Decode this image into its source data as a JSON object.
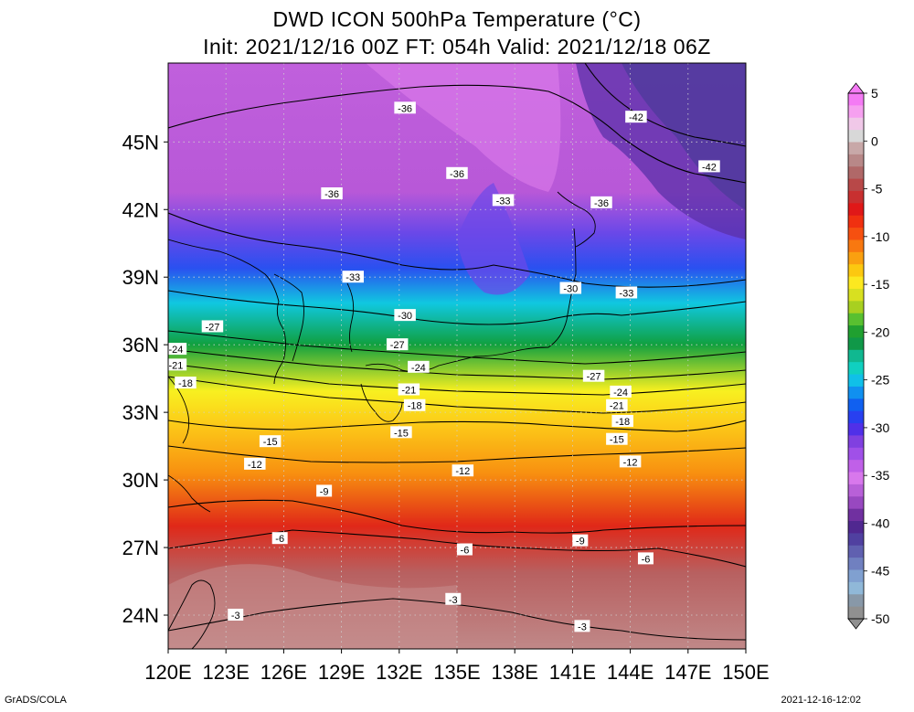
{
  "title_line1": "DWD ICON 500hPa Temperature (°C)",
  "title_line2": "Init: 2021/12/16 00Z  FT: 054h  Valid: 2021/12/18 06Z",
  "footer_left": "GrADS/COLA",
  "footer_right": "2021-12-16-12:02",
  "axes": {
    "lon_ticks": [
      "120E",
      "123E",
      "126E",
      "129E",
      "132E",
      "135E",
      "138E",
      "141E",
      "144E",
      "147E",
      "150E"
    ],
    "lat_ticks": [
      "24N",
      "27N",
      "30N",
      "33N",
      "36N",
      "39N",
      "42N",
      "45N"
    ],
    "lon_range": [
      120,
      150
    ],
    "lat_range": [
      22.5,
      48.5
    ]
  },
  "colorbar": {
    "labels": [
      "5",
      "0",
      "-5",
      "-10",
      "-15",
      "-20",
      "-25",
      "-30",
      "-35",
      "-40",
      "-45",
      "-50"
    ],
    "colors": [
      "#f47af4",
      "#f6a0f0",
      "#f0c8e8",
      "#d8d8d8",
      "#c8a8a8",
      "#b88888",
      "#b06868",
      "#b84848",
      "#c83030",
      "#e01818",
      "#f03010",
      "#f65010",
      "#f87810",
      "#faa010",
      "#fcc810",
      "#fce820",
      "#d8e020",
      "#a8d020",
      "#58c030",
      "#20a030",
      "#109848",
      "#10b890",
      "#10d0c0",
      "#10c0e8",
      "#1090f0",
      "#1060f0",
      "#2840f0",
      "#5030e8",
      "#8040e0",
      "#a050e8",
      "#c060e8",
      "#d878ec",
      "#b860d8",
      "#9848c0",
      "#7030a0",
      "#502890",
      "#5040a0",
      "#6060b0",
      "#7080c0",
      "#80a0d0",
      "#90b8d8",
      "#8898a8",
      "#909090"
    ]
  },
  "contour_labels": [
    {
      "text": "-36",
      "lon": 132.3,
      "lat": 46.5
    },
    {
      "text": "-42",
      "lon": 144.3,
      "lat": 46.1
    },
    {
      "text": "-42",
      "lon": 148.1,
      "lat": 43.9
    },
    {
      "text": "-36",
      "lon": 135.0,
      "lat": 43.6
    },
    {
      "text": "-36",
      "lon": 128.5,
      "lat": 42.7
    },
    {
      "text": "-33",
      "lon": 137.4,
      "lat": 42.4
    },
    {
      "text": "-36",
      "lon": 142.5,
      "lat": 42.3
    },
    {
      "text": "-33",
      "lon": 129.6,
      "lat": 39.0
    },
    {
      "text": "-30",
      "lon": 140.9,
      "lat": 38.5
    },
    {
      "text": "-33",
      "lon": 143.8,
      "lat": 38.3
    },
    {
      "text": "-30",
      "lon": 132.3,
      "lat": 37.3
    },
    {
      "text": "-27",
      "lon": 122.3,
      "lat": 36.8
    },
    {
      "text": "-27",
      "lon": 131.9,
      "lat": 36.0
    },
    {
      "text": "-24",
      "lon": 120.4,
      "lat": 35.8
    },
    {
      "text": "-24",
      "lon": 133.0,
      "lat": 35.0
    },
    {
      "text": "-21",
      "lon": 120.4,
      "lat": 35.1
    },
    {
      "text": "-27",
      "lon": 142.1,
      "lat": 34.6
    },
    {
      "text": "-18",
      "lon": 120.9,
      "lat": 34.3
    },
    {
      "text": "-21",
      "lon": 132.5,
      "lat": 34.0
    },
    {
      "text": "-24",
      "lon": 143.5,
      "lat": 33.9
    },
    {
      "text": "-18",
      "lon": 132.8,
      "lat": 33.3
    },
    {
      "text": "-21",
      "lon": 143.3,
      "lat": 33.3
    },
    {
      "text": "-18",
      "lon": 143.6,
      "lat": 32.6
    },
    {
      "text": "-15",
      "lon": 132.1,
      "lat": 32.1
    },
    {
      "text": "-15",
      "lon": 125.3,
      "lat": 31.7
    },
    {
      "text": "-15",
      "lon": 143.3,
      "lat": 31.8
    },
    {
      "text": "-12",
      "lon": 124.5,
      "lat": 30.7
    },
    {
      "text": "-12",
      "lon": 144.0,
      "lat": 30.8
    },
    {
      "text": "-12",
      "lon": 135.3,
      "lat": 30.4
    },
    {
      "text": "-9",
      "lon": 128.1,
      "lat": 29.5
    },
    {
      "text": "-6",
      "lon": 125.8,
      "lat": 27.4
    },
    {
      "text": "-9",
      "lon": 141.4,
      "lat": 27.3
    },
    {
      "text": "-6",
      "lon": 135.4,
      "lat": 26.9
    },
    {
      "text": "-6",
      "lon": 144.8,
      "lat": 26.5
    },
    {
      "text": "-3",
      "lon": 134.8,
      "lat": 24.7
    },
    {
      "text": "-3",
      "lon": 123.5,
      "lat": 24.0
    },
    {
      "text": "-3",
      "lon": 141.5,
      "lat": 23.5
    }
  ]
}
